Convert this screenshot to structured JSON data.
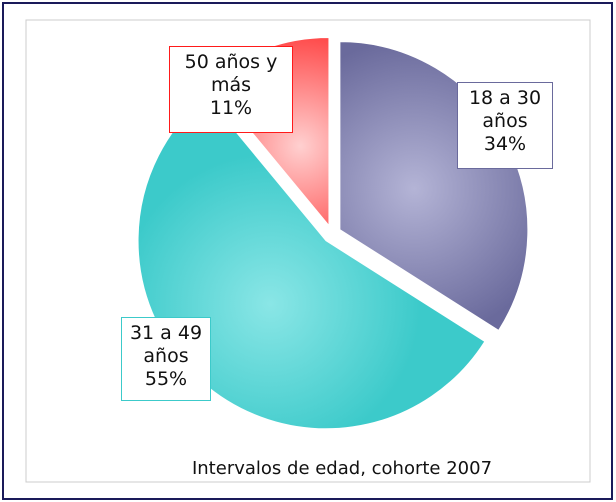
{
  "chart_data": {
    "type": "pie",
    "caption": "Intervalos de edad, cohorte 2007",
    "categories": [
      "18 a 30 años",
      "31 a 49 años",
      "50 años y más"
    ],
    "values": [
      34,
      55,
      11
    ],
    "value_labels": [
      "34%",
      "55%",
      "11%"
    ],
    "colors": [
      "#6a6a9c",
      "#3ccaca",
      "#ff1a1a"
    ],
    "highlights": [
      "#b4b4d6",
      "#8ae6e6",
      "#ffd0d0"
    ]
  }
}
